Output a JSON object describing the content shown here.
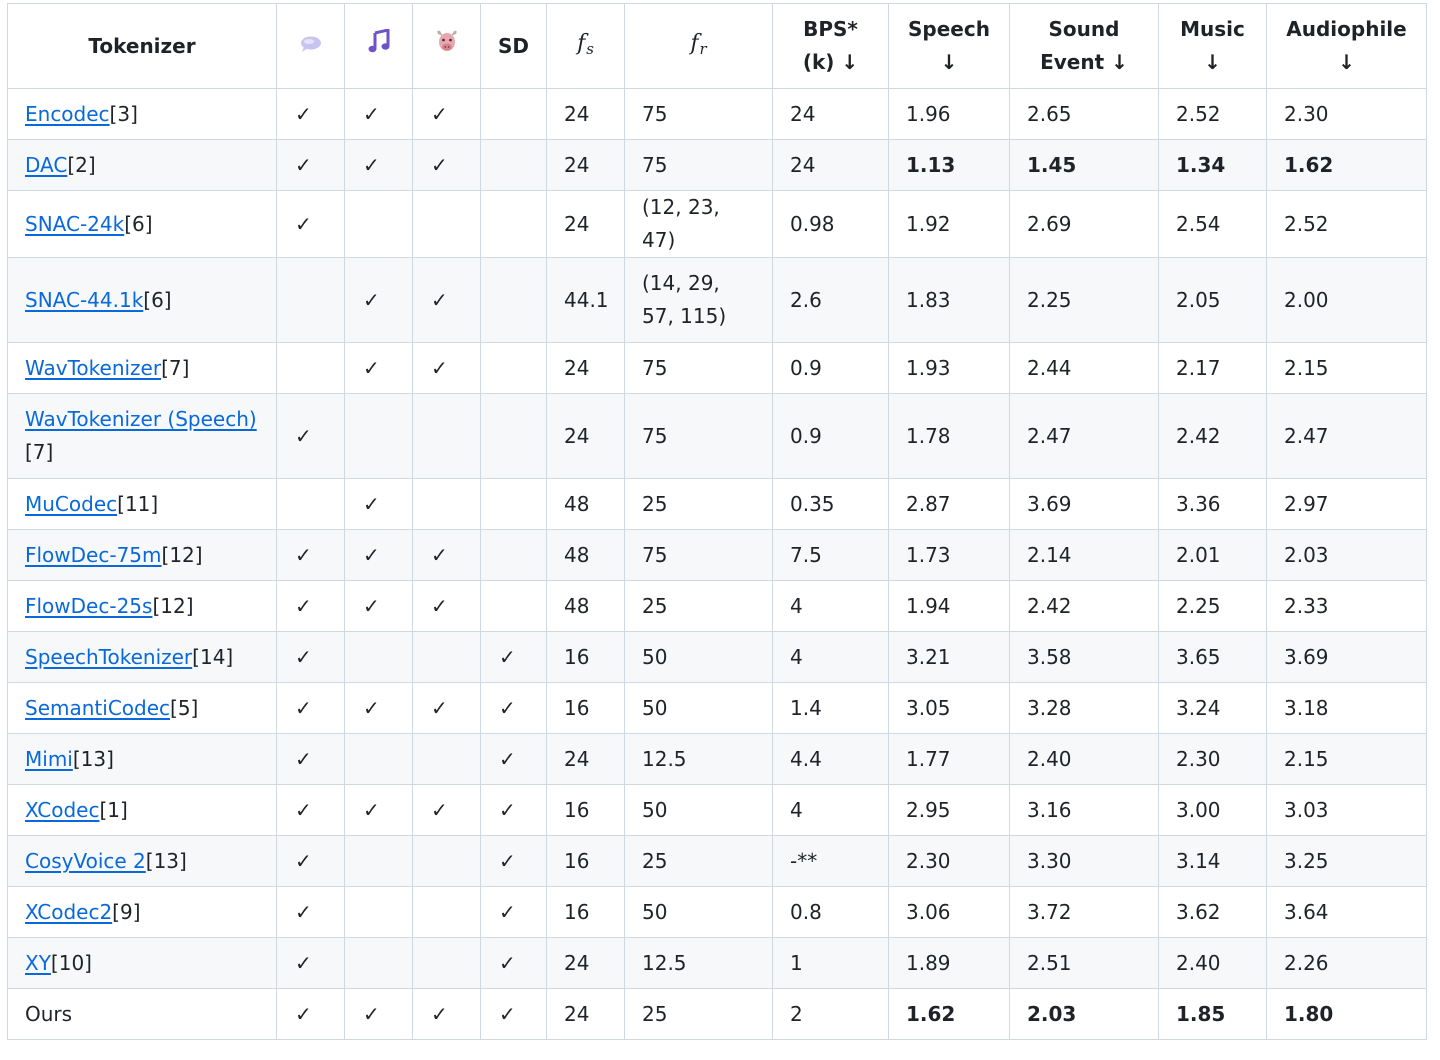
{
  "headers": {
    "tokenizer": "Tokenizer",
    "speech_icon": "speech-bubble-icon",
    "music_icon": "music-note-icon",
    "audio_icon": "ox-face-icon",
    "sd": "SD",
    "fs_base": "f",
    "fs_sub": "s",
    "fr_base": "f",
    "fr_sub": "r",
    "bps_line1": "BPS*",
    "bps_line2": "(k) ↓",
    "speech_line1": "Speech",
    "speech_line2": "↓",
    "sound_line1": "Sound",
    "sound_line2": "Event ↓",
    "music_line1": "Music",
    "music_line2": "↓",
    "audiophile_line1": "Audiophile",
    "audiophile_line2": "↓"
  },
  "colors": {
    "link": "#0969da",
    "text": "#1f2328",
    "border": "#d1d9e0",
    "stripe": "#f6f8fa",
    "speech_icon_fill": "#c9c3f2",
    "music_icon_fill": "#6f52c8",
    "audio_icon_fill": "#e8a6ae"
  },
  "rows": [
    {
      "name": "Encodec",
      "ref": "[3]",
      "c1": "✓",
      "c2": "✓",
      "c3": "✓",
      "sd": "",
      "fs": "24",
      "fr": "75",
      "bps": "24",
      "speech": "1.96",
      "sound": "2.65",
      "music": "2.52",
      "audiophile": "2.30"
    },
    {
      "name": "DAC",
      "ref": "[2]",
      "c1": "✓",
      "c2": "✓",
      "c3": "✓",
      "sd": "",
      "fs": "24",
      "fr": "75",
      "bps": "24",
      "speech": "1.13",
      "sound": "1.45",
      "music": "1.34",
      "audiophile": "1.62"
    },
    {
      "name": "SNAC-24k",
      "ref": "[6]",
      "c1": "✓",
      "c2": "",
      "c3": "",
      "sd": "",
      "fs": "24",
      "fr": "(12, 23, 47)",
      "bps": "0.98",
      "speech": "1.92",
      "sound": "2.69",
      "music": "2.54",
      "audiophile": "2.52"
    },
    {
      "name": "SNAC-44.1k",
      "ref": "[6]",
      "c1": "",
      "c2": "✓",
      "c3": "✓",
      "sd": "",
      "fs": "44.1",
      "fr": "(14, 29, 57, 115)",
      "bps": "2.6",
      "speech": "1.83",
      "sound": "2.25",
      "music": "2.05",
      "audiophile": "2.00"
    },
    {
      "name": "WavTokenizer",
      "ref": "[7]",
      "c1": "",
      "c2": "✓",
      "c3": "✓",
      "sd": "",
      "fs": "24",
      "fr": "75",
      "bps": "0.9",
      "speech": "1.93",
      "sound": "2.44",
      "music": "2.17",
      "audiophile": "2.15"
    },
    {
      "name": "WavTokenizer (Speech)",
      "ref": "[7]",
      "c1": "✓",
      "c2": "",
      "c3": "",
      "sd": "",
      "fs": "24",
      "fr": "75",
      "bps": "0.9",
      "speech": "1.78",
      "sound": "2.47",
      "music": "2.42",
      "audiophile": "2.47"
    },
    {
      "name": "MuCodec",
      "ref": "[11]",
      "c1": "",
      "c2": "✓",
      "c3": "",
      "sd": "",
      "fs": "48",
      "fr": "25",
      "bps": "0.35",
      "speech": "2.87",
      "sound": "3.69",
      "music": "3.36",
      "audiophile": "2.97"
    },
    {
      "name": "FlowDec-75m",
      "ref": "[12]",
      "c1": "✓",
      "c2": "✓",
      "c3": "✓",
      "sd": "",
      "fs": "48",
      "fr": "75",
      "bps": "7.5",
      "speech": "1.73",
      "sound": "2.14",
      "music": "2.01",
      "audiophile": "2.03"
    },
    {
      "name": "FlowDec-25s",
      "ref": "[12]",
      "c1": "✓",
      "c2": "✓",
      "c3": "✓",
      "sd": "",
      "fs": "48",
      "fr": "25",
      "bps": "4",
      "speech": "1.94",
      "sound": "2.42",
      "music": "2.25",
      "audiophile": "2.33"
    },
    {
      "name": "SpeechTokenizer",
      "ref": "[14]",
      "c1": "✓",
      "c2": "",
      "c3": "",
      "sd": "✓",
      "fs": "16",
      "fr": "50",
      "bps": "4",
      "speech": "3.21",
      "sound": "3.58",
      "music": "3.65",
      "audiophile": "3.69"
    },
    {
      "name": "SemantiCodec",
      "ref": "[5]",
      "c1": "✓",
      "c2": "✓",
      "c3": "✓",
      "sd": "✓",
      "fs": "16",
      "fr": "50",
      "bps": "1.4",
      "speech": "3.05",
      "sound": "3.28",
      "music": "3.24",
      "audiophile": "3.18"
    },
    {
      "name": "Mimi",
      "ref": "[13]",
      "c1": "✓",
      "c2": "",
      "c3": "",
      "sd": "✓",
      "fs": "24",
      "fr": "12.5",
      "bps": "4.4",
      "speech": "1.77",
      "sound": "2.40",
      "music": "2.30",
      "audiophile": "2.15"
    },
    {
      "name": "XCodec",
      "ref": "[1]",
      "c1": "✓",
      "c2": "✓",
      "c3": "✓",
      "sd": "✓",
      "fs": "16",
      "fr": "50",
      "bps": "4",
      "speech": "2.95",
      "sound": "3.16",
      "music": "3.00",
      "audiophile": "3.03"
    },
    {
      "name": "CosyVoice 2",
      "ref": "[13]",
      "c1": "✓",
      "c2": "",
      "c3": "",
      "sd": "✓",
      "fs": "16",
      "fr": "25",
      "bps": "-**",
      "speech": "2.30",
      "sound": "3.30",
      "music": "3.14",
      "audiophile": "3.25"
    },
    {
      "name": "XCodec2",
      "ref": "[9]",
      "c1": "✓",
      "c2": "",
      "c3": "",
      "sd": "✓",
      "fs": "16",
      "fr": "50",
      "bps": "0.8",
      "speech": "3.06",
      "sound": "3.72",
      "music": "3.62",
      "audiophile": "3.64"
    },
    {
      "name": "XY",
      "ref": "[10]",
      "c1": "✓",
      "c2": "",
      "c3": "",
      "sd": "✓",
      "fs": "24",
      "fr": "12.5",
      "bps": "1",
      "speech": "1.89",
      "sound": "2.51",
      "music": "2.40",
      "audiophile": "2.26"
    },
    {
      "name": "Ours",
      "ref": "",
      "c1": "✓",
      "c2": "✓",
      "c3": "✓",
      "sd": "✓",
      "fs": "24",
      "fr": "25",
      "bps": "2",
      "speech": "1.62",
      "sound": "2.03",
      "music": "1.85",
      "audiophile": "1.80"
    }
  ]
}
